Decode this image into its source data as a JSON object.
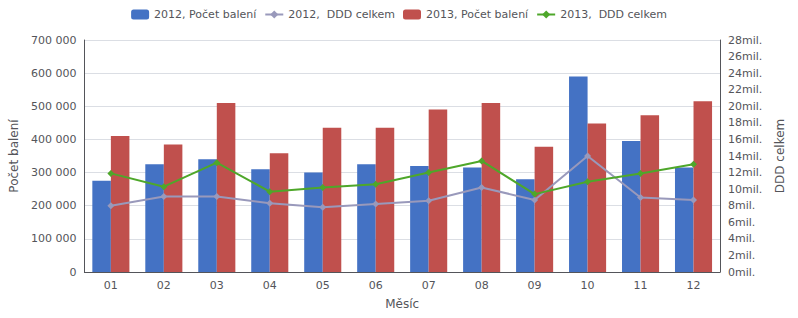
{
  "chart_data": {
    "type": "bar",
    "xlabel": "Měsíc",
    "ylabel": "Počet balení",
    "y2label": "DDD celkem",
    "categories": [
      "01",
      "02",
      "03",
      "04",
      "05",
      "06",
      "07",
      "08",
      "09",
      "10",
      "11",
      "12"
    ],
    "series": [
      {
        "name": "2012, Počet balení",
        "type": "bar",
        "color": "#4472C4",
        "values": [
          275000,
          325000,
          340000,
          310000,
          300000,
          325000,
          320000,
          315000,
          280000,
          590000,
          395000,
          315000
        ]
      },
      {
        "name": "2012,  DDD celkem",
        "type": "line",
        "axis": "y2",
        "color": "#9999BB",
        "marker": "diamond",
        "values": [
          8.0,
          9.1,
          9.1,
          8.3,
          7.8,
          8.2,
          8.6,
          10.2,
          8.7,
          14.0,
          9.0,
          8.7
        ]
      },
      {
        "name": "2013, Počet balení",
        "type": "bar",
        "color": "#C0504D",
        "values": [
          410000,
          385000,
          510000,
          358000,
          435000,
          435000,
          490000,
          510000,
          378000,
          448000,
          473000,
          515000
        ]
      },
      {
        "name": "2013,  DDD celkem",
        "type": "line",
        "axis": "y2",
        "color": "#4EA72A",
        "marker": "diamond",
        "values": [
          11.9,
          10.3,
          13.2,
          9.7,
          10.2,
          10.6,
          12.0,
          13.4,
          9.4,
          10.9,
          11.9,
          13.0
        ]
      }
    ],
    "ylim": [
      0,
      700000
    ],
    "yticks": [
      0,
      {
        "value": 100000,
        "label": "100 000"
      },
      {
        "value": 200000,
        "label": "200 000"
      },
      {
        "value": 300000,
        "label": "300 000"
      },
      {
        "value": 400000,
        "label": "400 000"
      },
      {
        "value": 500000,
        "label": "500 000"
      },
      {
        "value": 600000,
        "label": "600 000"
      },
      {
        "value": 700000,
        "label": "700 000"
      }
    ],
    "y2lim": [
      0,
      28
    ],
    "y2ticks": [
      {
        "value": 0,
        "label": "0mil."
      },
      {
        "value": 2,
        "label": "2mil."
      },
      {
        "value": 4,
        "label": "4mil."
      },
      {
        "value": 6,
        "label": "6mil."
      },
      {
        "value": 8,
        "label": "8mil."
      },
      {
        "value": 10,
        "label": "10mil."
      },
      {
        "value": 12,
        "label": "12mil."
      },
      {
        "value": 14,
        "label": "14mil."
      },
      {
        "value": 16,
        "label": "16mil."
      },
      {
        "value": 18,
        "label": "18mil."
      },
      {
        "value": 20,
        "label": "20mil."
      },
      {
        "value": 22,
        "label": "22mil."
      },
      {
        "value": 24,
        "label": "24mil."
      },
      {
        "value": 26,
        "label": "26mil."
      },
      {
        "value": 28,
        "label": "28mil."
      }
    ],
    "grid": true,
    "legend": "top"
  }
}
